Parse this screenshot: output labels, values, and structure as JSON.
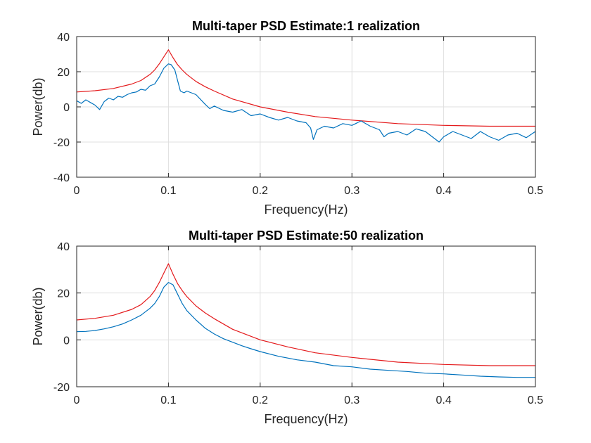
{
  "chart_data": [
    {
      "type": "line",
      "title": "Multi-taper PSD Estimate:1 realization",
      "xlabel": "Frequency(Hz)",
      "ylabel": "Power(db)",
      "xlim": [
        0,
        0.5
      ],
      "ylim": [
        -40,
        40
      ],
      "xticks": [
        0,
        0.1,
        0.2,
        0.3,
        0.4,
        0.5
      ],
      "xtick_labels": [
        "0",
        "0.1",
        "0.2",
        "0.3",
        "0.4",
        "0.5"
      ],
      "yticks": [
        -40,
        -20,
        0,
        20,
        40
      ],
      "ytick_labels": [
        "-40",
        "-20",
        "0",
        "20",
        "40"
      ],
      "grid": true,
      "series": [
        {
          "color": "#e41a1c",
          "x": [
            0,
            0.02,
            0.04,
            0.06,
            0.07,
            0.08,
            0.085,
            0.09,
            0.095,
            0.1,
            0.105,
            0.11,
            0.115,
            0.12,
            0.13,
            0.14,
            0.15,
            0.17,
            0.2,
            0.23,
            0.26,
            0.3,
            0.35,
            0.4,
            0.45,
            0.5
          ],
          "y": [
            8.5,
            9.2,
            10.5,
            13,
            15,
            18.5,
            21,
            24.5,
            28.5,
            32.5,
            28,
            24,
            21,
            18.5,
            14.5,
            11.5,
            9,
            4.5,
            0,
            -3,
            -5.5,
            -7.5,
            -9.5,
            -10.5,
            -11,
            -11
          ]
        },
        {
          "color": "#0072bd",
          "x": [
            0,
            0.005,
            0.01,
            0.015,
            0.02,
            0.025,
            0.03,
            0.035,
            0.04,
            0.045,
            0.05,
            0.055,
            0.06,
            0.065,
            0.07,
            0.075,
            0.08,
            0.085,
            0.09,
            0.095,
            0.1,
            0.103,
            0.107,
            0.11,
            0.113,
            0.117,
            0.12,
            0.13,
            0.14,
            0.145,
            0.15,
            0.16,
            0.17,
            0.18,
            0.19,
            0.2,
            0.21,
            0.22,
            0.23,
            0.24,
            0.25,
            0.255,
            0.258,
            0.262,
            0.27,
            0.28,
            0.29,
            0.3,
            0.31,
            0.32,
            0.33,
            0.335,
            0.34,
            0.35,
            0.36,
            0.37,
            0.38,
            0.39,
            0.395,
            0.4,
            0.41,
            0.42,
            0.43,
            0.44,
            0.45,
            0.46,
            0.47,
            0.48,
            0.49,
            0.5
          ],
          "y": [
            3.5,
            2,
            4,
            2.5,
            1,
            -1.5,
            3,
            5,
            4,
            6,
            5.5,
            7,
            8,
            8.5,
            10,
            9.5,
            12,
            13,
            17,
            22,
            24.5,
            24,
            21,
            15,
            9,
            8,
            9,
            7,
            1.5,
            -1,
            0.5,
            -2,
            -3,
            -1.5,
            -5,
            -4,
            -6,
            -7.5,
            -6,
            -8,
            -9,
            -12,
            -18.5,
            -13,
            -11,
            -12,
            -9.5,
            -10.5,
            -8,
            -11,
            -13,
            -17,
            -15,
            -14,
            -16,
            -12.5,
            -14,
            -18,
            -20,
            -17,
            -14,
            -16,
            -18,
            -14,
            -17,
            -19,
            -16,
            -15,
            -17.5,
            -14
          ]
        }
      ]
    },
    {
      "type": "line",
      "title": "Multi-taper PSD Estimate:50 realization",
      "xlabel": "Frequency(Hz)",
      "ylabel": "Power(db)",
      "xlim": [
        0,
        0.5
      ],
      "ylim": [
        -20,
        40
      ],
      "xticks": [
        0,
        0.1,
        0.2,
        0.3,
        0.4,
        0.5
      ],
      "xtick_labels": [
        "0",
        "0.1",
        "0.2",
        "0.3",
        "0.4",
        "0.5"
      ],
      "yticks": [
        -20,
        0,
        20,
        40
      ],
      "ytick_labels": [
        "-20",
        "0",
        "20",
        "40"
      ],
      "grid": true,
      "series": [
        {
          "color": "#e41a1c",
          "x": [
            0,
            0.02,
            0.04,
            0.06,
            0.07,
            0.08,
            0.085,
            0.09,
            0.095,
            0.1,
            0.105,
            0.11,
            0.115,
            0.12,
            0.13,
            0.14,
            0.15,
            0.17,
            0.2,
            0.23,
            0.26,
            0.3,
            0.35,
            0.4,
            0.45,
            0.5
          ],
          "y": [
            8.5,
            9.2,
            10.5,
            13,
            15,
            18.5,
            21,
            24.5,
            28.5,
            32.5,
            28,
            24,
            21,
            18.5,
            14.5,
            11.5,
            9,
            4.5,
            0,
            -3,
            -5.5,
            -7.5,
            -9.5,
            -10.5,
            -11,
            -11
          ]
        },
        {
          "color": "#0072bd",
          "x": [
            0,
            0.01,
            0.02,
            0.03,
            0.04,
            0.05,
            0.06,
            0.07,
            0.08,
            0.085,
            0.09,
            0.095,
            0.1,
            0.105,
            0.11,
            0.115,
            0.12,
            0.13,
            0.14,
            0.15,
            0.16,
            0.17,
            0.18,
            0.19,
            0.2,
            0.22,
            0.24,
            0.26,
            0.28,
            0.3,
            0.32,
            0.34,
            0.36,
            0.38,
            0.4,
            0.42,
            0.44,
            0.46,
            0.48,
            0.5
          ],
          "y": [
            3.5,
            3.6,
            4,
            4.7,
            5.6,
            6.8,
            8.5,
            10.5,
            13.5,
            15.5,
            18.5,
            22.5,
            24.5,
            23.5,
            19.5,
            15.5,
            12.5,
            8.5,
            5,
            2.5,
            0.5,
            -1,
            -2.5,
            -3.8,
            -5,
            -7,
            -8.5,
            -9.5,
            -11,
            -11.5,
            -12.5,
            -13,
            -13.5,
            -14.2,
            -14.5,
            -15,
            -15.5,
            -15.8,
            -16,
            -16
          ]
        }
      ]
    }
  ]
}
